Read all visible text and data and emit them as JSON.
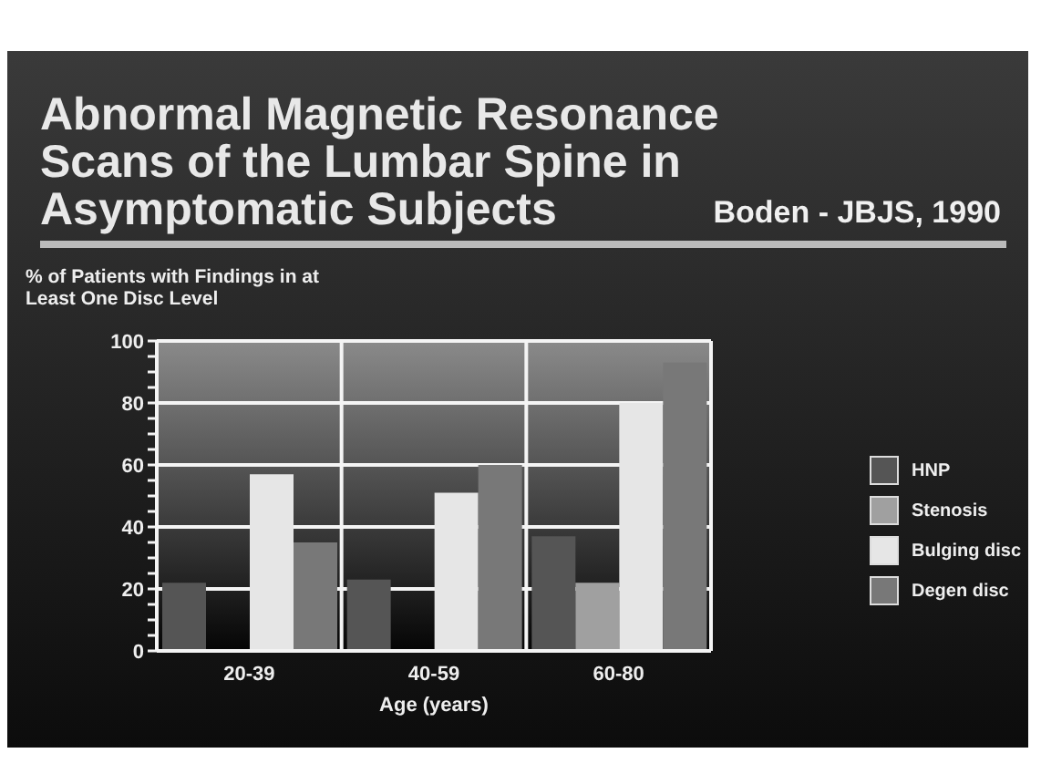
{
  "chart_data": {
    "type": "bar",
    "title": "Abnormal Magnetic Resonance Scans of the Lumbar Spine in Asymptomatic Subjects",
    "subtitle": "Boden - JBJS, 1990",
    "ylabel": "% of Patients with Findings in at Least One Disc Level",
    "xlabel": "Age (years)",
    "categories": [
      "20-39",
      "40-59",
      "60-80"
    ],
    "series": [
      {
        "name": "HNP",
        "color": "#555555",
        "values": [
          22,
          23,
          37
        ]
      },
      {
        "name": "Stenosis",
        "color": "#a0a0a0",
        "values": [
          null,
          null,
          22
        ]
      },
      {
        "name": "Bulging disc",
        "color": "#e6e6e6",
        "values": [
          57,
          51,
          80
        ]
      },
      {
        "name": "Degen disc",
        "color": "#787878",
        "values": [
          35,
          60,
          93
        ]
      }
    ],
    "ylim": [
      0,
      100
    ],
    "yticks": [
      0,
      {
        "value": 5,
        "label": null
      },
      {
        "value": 10,
        "label": null
      },
      {
        "value": 15,
        "label": null
      },
      20,
      {
        "value": 25,
        "label": null
      },
      {
        "value": 30,
        "label": null
      },
      {
        "value": 35,
        "label": null
      },
      40,
      {
        "value": 45,
        "label": null
      },
      {
        "value": 50,
        "label": null
      },
      {
        "value": 55,
        "label": null
      },
      60,
      {
        "value": 65,
        "label": null
      },
      {
        "value": 70,
        "label": null
      },
      {
        "value": 75,
        "label": null
      },
      80,
      {
        "value": 85,
        "label": null
      },
      {
        "value": 90,
        "label": null
      },
      {
        "value": 95,
        "label": null
      },
      100
    ],
    "grid": true,
    "legend": "right"
  }
}
